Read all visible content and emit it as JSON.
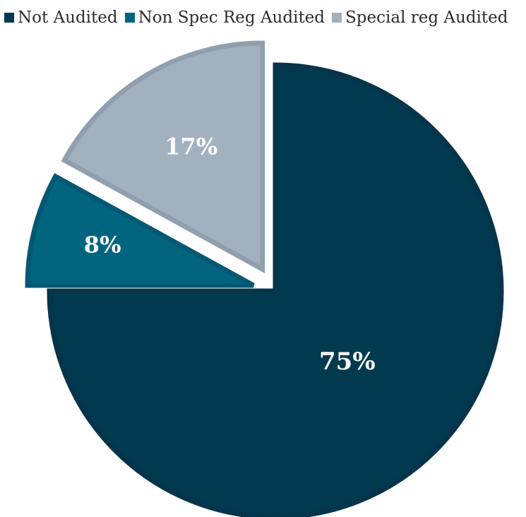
{
  "chart_data": {
    "type": "pie",
    "title": "",
    "legend_position": "top",
    "labels_shown_as": "percent",
    "series": [
      {
        "name": "Not Audited",
        "value": 75,
        "label": "75%",
        "color": "#01394f",
        "edge_color": "#06344a"
      },
      {
        "name": "Non Spec Reg Audited",
        "value": 8,
        "label": "8%",
        "color": "#02657f",
        "edge_color": "#055873"
      },
      {
        "name": "Special reg Audited",
        "value": 17,
        "label": "17%",
        "color": "#a2b1bf",
        "edge_color": "#8f9fae"
      }
    ]
  }
}
